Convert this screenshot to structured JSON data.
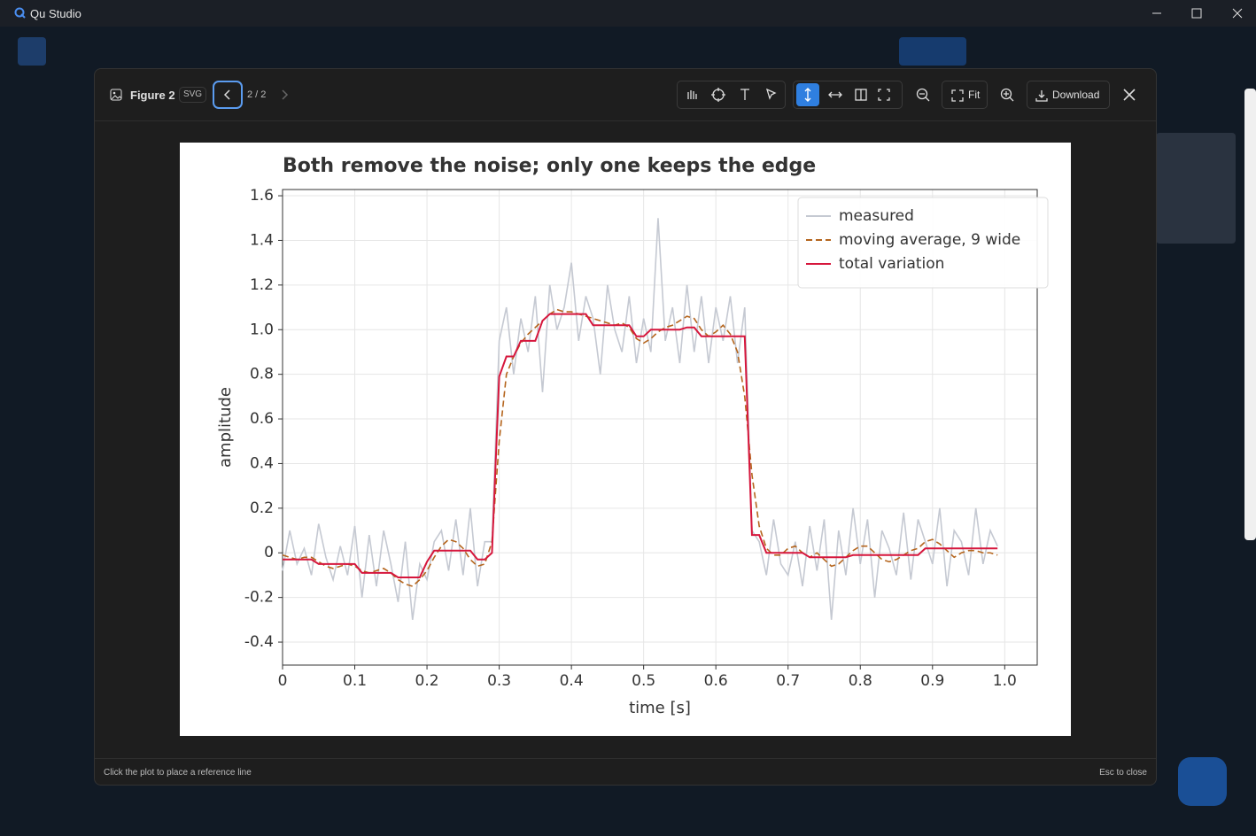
{
  "window": {
    "title": "Qu Studio"
  },
  "viewer": {
    "figure": "Figure 2",
    "format": "SVG",
    "page": "2 / 2",
    "fit": "Fit",
    "download": "Download",
    "hint": "Click the plot to place a reference line",
    "close_hint": "Esc to close"
  },
  "chart_data": {
    "type": "line",
    "title": "Both remove the noise; only one keeps the edge",
    "x_label": "time [s]",
    "y_label": "amplitude",
    "x": [
      0,
      0.01,
      0.02,
      0.03,
      0.04,
      0.05,
      0.06,
      0.07,
      0.08,
      0.09,
      0.1,
      0.11,
      0.12,
      0.13,
      0.14,
      0.15,
      0.16,
      0.17,
      0.18,
      0.19,
      0.2,
      0.21,
      0.22,
      0.23,
      0.24,
      0.25,
      0.26,
      0.27,
      0.28,
      0.29,
      0.3,
      0.31,
      0.32,
      0.33,
      0.34,
      0.35,
      0.36,
      0.37,
      0.38,
      0.39,
      0.4,
      0.41,
      0.42,
      0.43,
      0.44,
      0.45,
      0.46,
      0.47,
      0.48,
      0.49,
      0.5,
      0.51,
      0.52,
      0.53,
      0.54,
      0.55,
      0.56,
      0.57,
      0.58,
      0.59,
      0.6,
      0.61,
      0.62,
      0.63,
      0.64,
      0.65,
      0.66,
      0.67,
      0.68,
      0.69,
      0.7,
      0.71,
      0.72,
      0.73,
      0.74,
      0.75,
      0.76,
      0.77,
      0.78,
      0.79,
      0.8,
      0.81,
      0.82,
      0.83,
      0.84,
      0.85,
      0.86,
      0.87,
      0.88,
      0.89,
      0.9,
      0.91,
      0.92,
      0.93,
      0.94,
      0.95,
      0.96,
      0.97,
      0.98,
      0.99
    ],
    "series": [
      {
        "name": "measured",
        "color": "#c5c9d2",
        "dash": false,
        "values": [
          -0.08,
          0.1,
          -0.05,
          0.02,
          -0.1,
          0.13,
          -0.02,
          -0.12,
          0.03,
          -0.1,
          0.12,
          -0.2,
          0.08,
          -0.15,
          0.1,
          -0.05,
          -0.22,
          0.05,
          -0.3,
          -0.05,
          -0.12,
          0.05,
          0.1,
          -0.08,
          0.15,
          -0.1,
          0.2,
          -0.15,
          0.05,
          0.05,
          0.95,
          1.1,
          0.8,
          1.05,
          0.9,
          1.15,
          0.72,
          1.2,
          1.0,
          1.1,
          1.3,
          0.95,
          1.15,
          1.05,
          0.8,
          1.2,
          1.0,
          0.9,
          1.15,
          0.85,
          1.05,
          0.9,
          1.5,
          0.95,
          1.1,
          0.85,
          1.2,
          0.9,
          1.15,
          0.85,
          1.1,
          0.95,
          1.15,
          0.85,
          1.1,
          0.1,
          0.05,
          -0.1,
          0.15,
          -0.05,
          -0.1,
          0.05,
          -0.15,
          0.12,
          -0.08,
          0.15,
          -0.3,
          0.1,
          -0.1,
          0.2,
          -0.05,
          0.15,
          -0.2,
          0.1,
          0.02,
          -0.1,
          0.18,
          -0.12,
          0.15,
          0.05,
          -0.05,
          0.2,
          -0.15,
          0.1,
          0.05,
          -0.1,
          0.2,
          -0.05,
          0.1,
          0.03
        ]
      },
      {
        "name": "moving average, 9 wide",
        "color": "#b5651d",
        "dash": true,
        "values": [
          -0.01,
          -0.02,
          -0.03,
          -0.02,
          -0.02,
          -0.04,
          -0.06,
          -0.07,
          -0.06,
          -0.05,
          -0.06,
          -0.08,
          -0.09,
          -0.08,
          -0.07,
          -0.09,
          -0.12,
          -0.14,
          -0.15,
          -0.12,
          -0.08,
          -0.02,
          0.03,
          0.06,
          0.05,
          0.02,
          -0.03,
          -0.06,
          -0.05,
          0.05,
          0.5,
          0.8,
          0.88,
          0.94,
          0.98,
          1.01,
          1.04,
          1.07,
          1.09,
          1.08,
          1.08,
          1.07,
          1.06,
          1.05,
          1.04,
          1.03,
          1.02,
          1.03,
          1.01,
          0.96,
          0.94,
          0.96,
          0.99,
          1.01,
          1.02,
          1.04,
          1.06,
          1.05,
          1.0,
          0.97,
          0.99,
          1.02,
          0.98,
          0.9,
          0.7,
          0.35,
          0.12,
          0.02,
          -0.01,
          -0.01,
          0.02,
          0.03,
          0,
          -0.02,
          0,
          -0.03,
          -0.06,
          -0.05,
          -0.02,
          0.01,
          0.03,
          0.03,
          0,
          -0.03,
          -0.04,
          -0.03,
          -0.01,
          0.01,
          0.02,
          0.05,
          0.06,
          0.04,
          0.01,
          -0.02,
          0,
          0.01,
          0.01,
          0,
          0,
          -0.01
        ]
      },
      {
        "name": "total variation",
        "color": "#d6163c",
        "dash": false,
        "values": [
          -0.03,
          -0.03,
          -0.03,
          -0.03,
          -0.03,
          -0.05,
          -0.05,
          -0.05,
          -0.05,
          -0.05,
          -0.05,
          -0.09,
          -0.09,
          -0.09,
          -0.09,
          -0.09,
          -0.11,
          -0.11,
          -0.11,
          -0.11,
          -0.04,
          0.01,
          0.01,
          0.01,
          0.01,
          0.01,
          0.01,
          -0.03,
          -0.03,
          0,
          0.79,
          0.88,
          0.88,
          0.95,
          0.95,
          0.95,
          1.04,
          1.07,
          1.07,
          1.07,
          1.07,
          1.07,
          1.07,
          1.02,
          1.02,
          1.02,
          1.02,
          1.02,
          1.02,
          0.97,
          0.97,
          1.0,
          1.0,
          1.0,
          1.0,
          1.0,
          1.01,
          1.01,
          0.97,
          0.97,
          0.97,
          0.97,
          0.97,
          0.97,
          0.97,
          0.08,
          0.08,
          0,
          0,
          0,
          0,
          0,
          0,
          -0.02,
          -0.02,
          -0.02,
          -0.02,
          -0.02,
          -0.02,
          -0.01,
          -0.01,
          -0.01,
          -0.01,
          -0.01,
          -0.01,
          -0.01,
          -0.01,
          -0.01,
          -0.01,
          0.02,
          0.02,
          0.02,
          0.02,
          0.02,
          0.02,
          0.02,
          0.02,
          0.02,
          0.02,
          0.02
        ]
      }
    ],
    "xlim": [
      0,
      1.045
    ],
    "xticks": [
      0,
      0.1,
      0.2,
      0.3,
      0.4,
      0.5,
      0.6,
      0.7,
      0.8,
      0.9,
      {
        "value": 1,
        "label": "1.0"
      }
    ],
    "ylim": [
      -0.503,
      1.628
    ],
    "yticks": [
      -0.4,
      -0.2,
      0,
      0.2,
      0.4,
      0.6,
      0.8,
      {
        "value": 1,
        "label": "1.0"
      },
      1.2,
      1.4,
      1.6
    ],
    "grid": true,
    "legend": "upper right"
  }
}
